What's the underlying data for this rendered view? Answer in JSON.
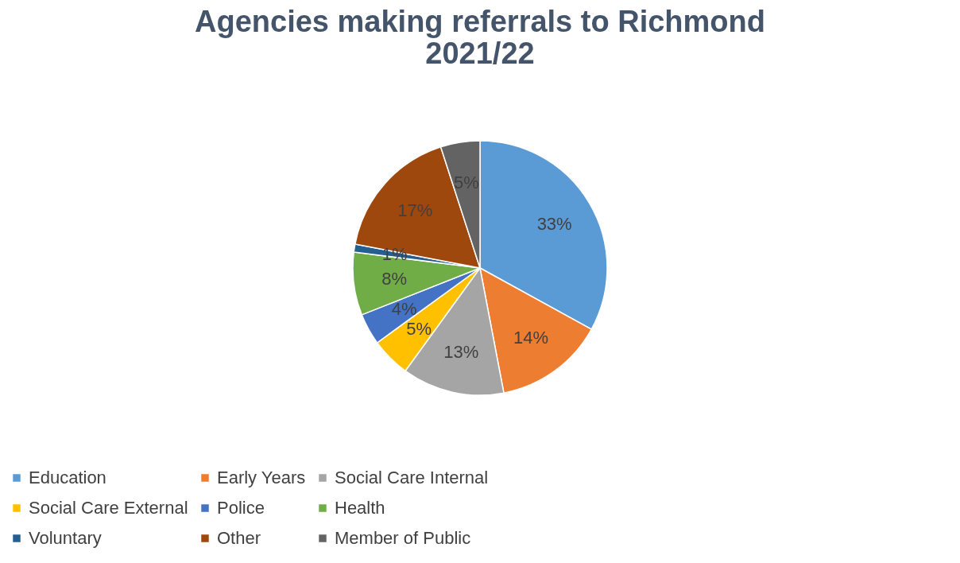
{
  "chart_data": {
    "type": "pie",
    "title": [
      "Agencies making referrals to Richmond",
      "2021/22"
    ],
    "categories": [
      "Education",
      "Early Years",
      "Social Care Internal",
      "Social Care External",
      "Police",
      "Health",
      "Voluntary",
      "Other",
      "Member of Public"
    ],
    "values": [
      33,
      14,
      13,
      5,
      4,
      8,
      1,
      17,
      5
    ],
    "colors": [
      "#5b9bd5",
      "#ed7d31",
      "#a5a5a5",
      "#ffc000",
      "#4472c4",
      "#70ad47",
      "#255e91",
      "#9e480e",
      "#636363"
    ],
    "value_labels": [
      "33%",
      "14%",
      "13%",
      "5%",
      "4%",
      "8%",
      "1%",
      "17%",
      "5%"
    ],
    "legend": "bottom"
  }
}
